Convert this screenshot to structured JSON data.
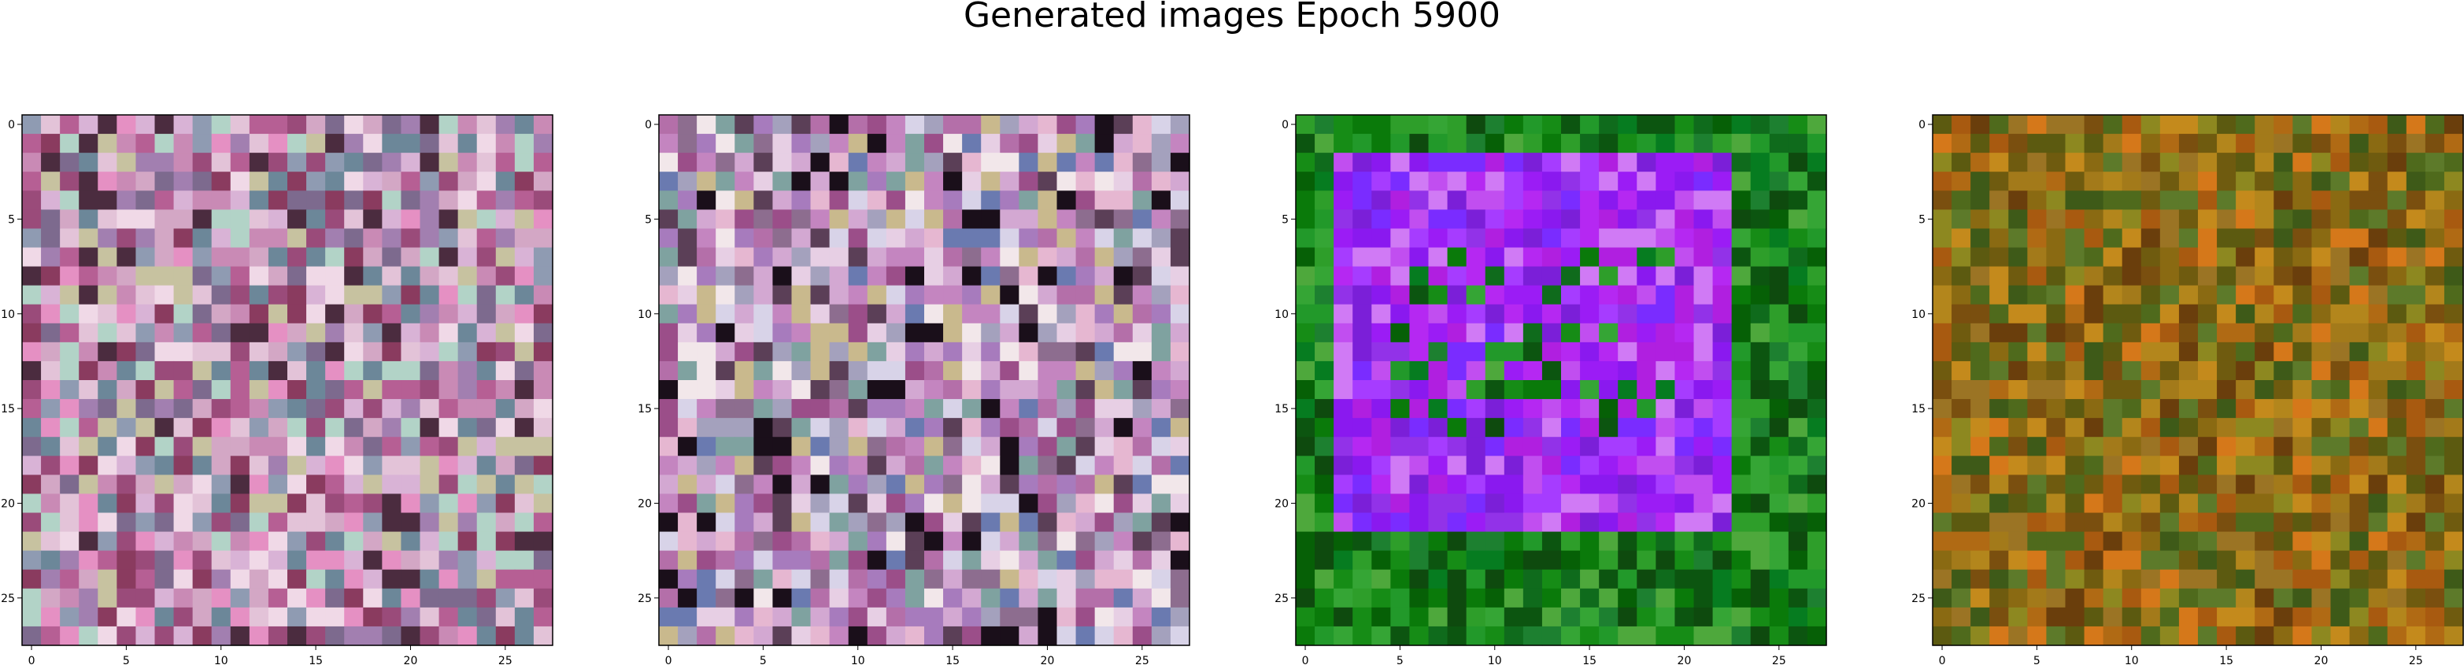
{
  "figure": {
    "title": "Generated images Epoch 5900"
  },
  "panels": [
    {
      "name": "generated-image-1",
      "palette": [
        "#c98ab5",
        "#d9b3d6",
        "#a27fb0",
        "#8f9bb2",
        "#e3c3d8",
        "#b65f94",
        "#7d6a8e",
        "#f0d9e7",
        "#9a4b7a",
        "#6c8799",
        "#d3a7c5",
        "#4b2c3f",
        "#b2d3c7",
        "#e590c3",
        "#8a3b5f",
        "#c7c2a0"
      ],
      "seed": 11
    },
    {
      "name": "generated-image-2",
      "palette": [
        "#d3a8d2",
        "#c485c0",
        "#e7cfe4",
        "#b46fa9",
        "#a4a1bd",
        "#8d6d8f",
        "#e6b7d1",
        "#9b4e89",
        "#7fa2a0",
        "#f2e7ea",
        "#c9b98d",
        "#5b3f57",
        "#d8d3e8",
        "#a77bbd",
        "#1a0f1a",
        "#6a7ab0"
      ],
      "seed": 23
    },
    {
      "name": "generated-image-3",
      "palette": [
        "#0a7a0a",
        "#168c16",
        "#066006",
        "#2e9e2a",
        "#0f6b1c",
        "#0c5510",
        "#35a535",
        "#1d8030",
        "#0e4a0e",
        "#22992a",
        "#067c20",
        "#4ea83c"
      ],
      "inner_palette": [
        "#9b1cf5",
        "#b528f2",
        "#8a19ef",
        "#c14ef0",
        "#a63cff",
        "#7b1fd8",
        "#d07af5",
        "#9232e8",
        "#b01fe0",
        "#7a2cff"
      ],
      "seed": 37
    },
    {
      "name": "generated-image-4",
      "palette": [
        "#8a6a12",
        "#a37a1a",
        "#6f5b0f",
        "#b3861c",
        "#5c5a10",
        "#9b7424",
        "#c48a1c",
        "#7a4f0f",
        "#4f6a1c",
        "#b06a14",
        "#8d8820",
        "#6a3e0c",
        "#d5781a",
        "#5d7a2a",
        "#a85a10",
        "#3e5a18"
      ],
      "seed": 51
    }
  ],
  "axes": {
    "x_ticks": [
      "0",
      "5",
      "10",
      "15",
      "20",
      "25"
    ],
    "y_ticks": [
      "0",
      "5",
      "10",
      "15",
      "20",
      "25"
    ]
  }
}
